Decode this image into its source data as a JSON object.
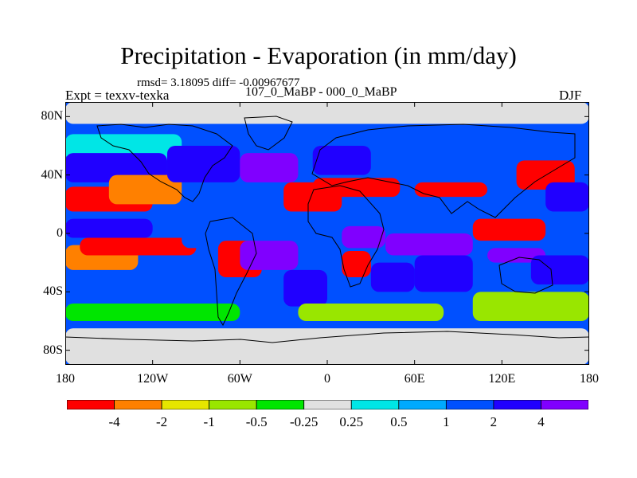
{
  "chart_data": {
    "type": "heatmap",
    "title": "Precipitation - Evaporation (in mm/day)",
    "stats": "rmsd= 3.18095 diff= -0.00967677",
    "subtitle": "107_0_MaBP - 000_0_MaBP",
    "experiment": "Expt = texxv-texka",
    "season": "DJF",
    "x_range": [
      -180,
      180
    ],
    "y_range": [
      -90,
      90
    ],
    "x_ticks": [
      {
        "lon": -180,
        "label": "180"
      },
      {
        "lon": -120,
        "label": "120W"
      },
      {
        "lon": -60,
        "label": "60W"
      },
      {
        "lon": 0,
        "label": "0"
      },
      {
        "lon": 60,
        "label": "60E"
      },
      {
        "lon": 120,
        "label": "120E"
      },
      {
        "lon": 180,
        "label": "180"
      }
    ],
    "y_ticks": [
      {
        "lat": 80,
        "label": "80N"
      },
      {
        "lat": 40,
        "label": "40N"
      },
      {
        "lat": 0,
        "label": "0"
      },
      {
        "lat": -40,
        "label": "40S"
      },
      {
        "lat": -80,
        "label": "80S"
      }
    ],
    "colorbar": {
      "colors": [
        "#ff0000",
        "#ff8000",
        "#e6e600",
        "#99e600",
        "#00e600",
        "#e0e0e0",
        "#00e6e6",
        "#00aaff",
        "#0050ff",
        "#2000ff",
        "#8000ff"
      ],
      "labels": [
        "-4",
        "-2",
        "-1",
        "-0.5",
        "-0.25",
        "0.25",
        "0.5",
        "1",
        "2",
        "4"
      ]
    },
    "regions": [
      {
        "lon": [
          -180,
          180
        ],
        "lat": [
          75,
          90
        ],
        "level": 5
      },
      {
        "lon": [
          -180,
          180
        ],
        "lat": [
          -90,
          -65
        ],
        "level": 5
      },
      {
        "lon": [
          -180,
          -100
        ],
        "lat": [
          50,
          68
        ],
        "level": 6
      },
      {
        "lon": [
          -180,
          -110
        ],
        "lat": [
          35,
          55
        ],
        "level": 9
      },
      {
        "lon": [
          -180,
          -120
        ],
        "lat": [
          15,
          32
        ],
        "level": 0
      },
      {
        "lon": [
          -180,
          -120
        ],
        "lat": [
          -3,
          10
        ],
        "level": 9
      },
      {
        "lon": [
          -180,
          -130
        ],
        "lat": [
          -25,
          -8
        ],
        "level": 1
      },
      {
        "lon": [
          -180,
          -130
        ],
        "lat": [
          -45,
          -30
        ],
        "level": 8
      },
      {
        "lon": [
          -150,
          -100
        ],
        "lat": [
          20,
          40
        ],
        "level": 1
      },
      {
        "lon": [
          -170,
          -90
        ],
        "lat": [
          -15,
          -3
        ],
        "level": 0
      },
      {
        "lon": [
          -110,
          -60
        ],
        "lat": [
          35,
          60
        ],
        "level": 9
      },
      {
        "lon": [
          -100,
          -50
        ],
        "lat": [
          -10,
          10
        ],
        "level": 8
      },
      {
        "lon": [
          -75,
          -45
        ],
        "lat": [
          -30,
          -5
        ],
        "level": 0
      },
      {
        "lon": [
          -60,
          -20
        ],
        "lat": [
          35,
          55
        ],
        "level": 10
      },
      {
        "lon": [
          -60,
          -20
        ],
        "lat": [
          -25,
          -5
        ],
        "level": 10
      },
      {
        "lon": [
          -30,
          0
        ],
        "lat": [
          -50,
          -25
        ],
        "level": 9
      },
      {
        "lon": [
          -30,
          10
        ],
        "lat": [
          15,
          35
        ],
        "level": 0
      },
      {
        "lon": [
          -10,
          50
        ],
        "lat": [
          25,
          38
        ],
        "level": 0
      },
      {
        "lon": [
          -10,
          30
        ],
        "lat": [
          40,
          60
        ],
        "level": 9
      },
      {
        "lon": [
          10,
          40
        ],
        "lat": [
          -10,
          5
        ],
        "level": 10
      },
      {
        "lon": [
          10,
          30
        ],
        "lat": [
          -30,
          -12
        ],
        "level": 0
      },
      {
        "lon": [
          30,
          60
        ],
        "lat": [
          -40,
          -20
        ],
        "level": 9
      },
      {
        "lon": [
          40,
          100
        ],
        "lat": [
          -15,
          0
        ],
        "level": 10
      },
      {
        "lon": [
          60,
          100
        ],
        "lat": [
          -40,
          -15
        ],
        "level": 9
      },
      {
        "lon": [
          100,
          150
        ],
        "lat": [
          -5,
          10
        ],
        "level": 0
      },
      {
        "lon": [
          110,
          150
        ],
        "lat": [
          -20,
          -10
        ],
        "level": 10
      },
      {
        "lon": [
          60,
          110
        ],
        "lat": [
          25,
          35
        ],
        "level": 0
      },
      {
        "lon": [
          130,
          170
        ],
        "lat": [
          30,
          50
        ],
        "level": 0
      },
      {
        "lon": [
          150,
          180
        ],
        "lat": [
          15,
          35
        ],
        "level": 9
      },
      {
        "lon": [
          140,
          180
        ],
        "lat": [
          -35,
          -15
        ],
        "level": 9
      },
      {
        "lon": [
          100,
          180
        ],
        "lat": [
          -60,
          -40
        ],
        "level": 3
      },
      {
        "lon": [
          -180,
          -60
        ],
        "lat": [
          -60,
          -48
        ],
        "level": 4
      },
      {
        "lon": [
          -20,
          80
        ],
        "lat": [
          -60,
          -48
        ],
        "level": 3
      }
    ]
  }
}
